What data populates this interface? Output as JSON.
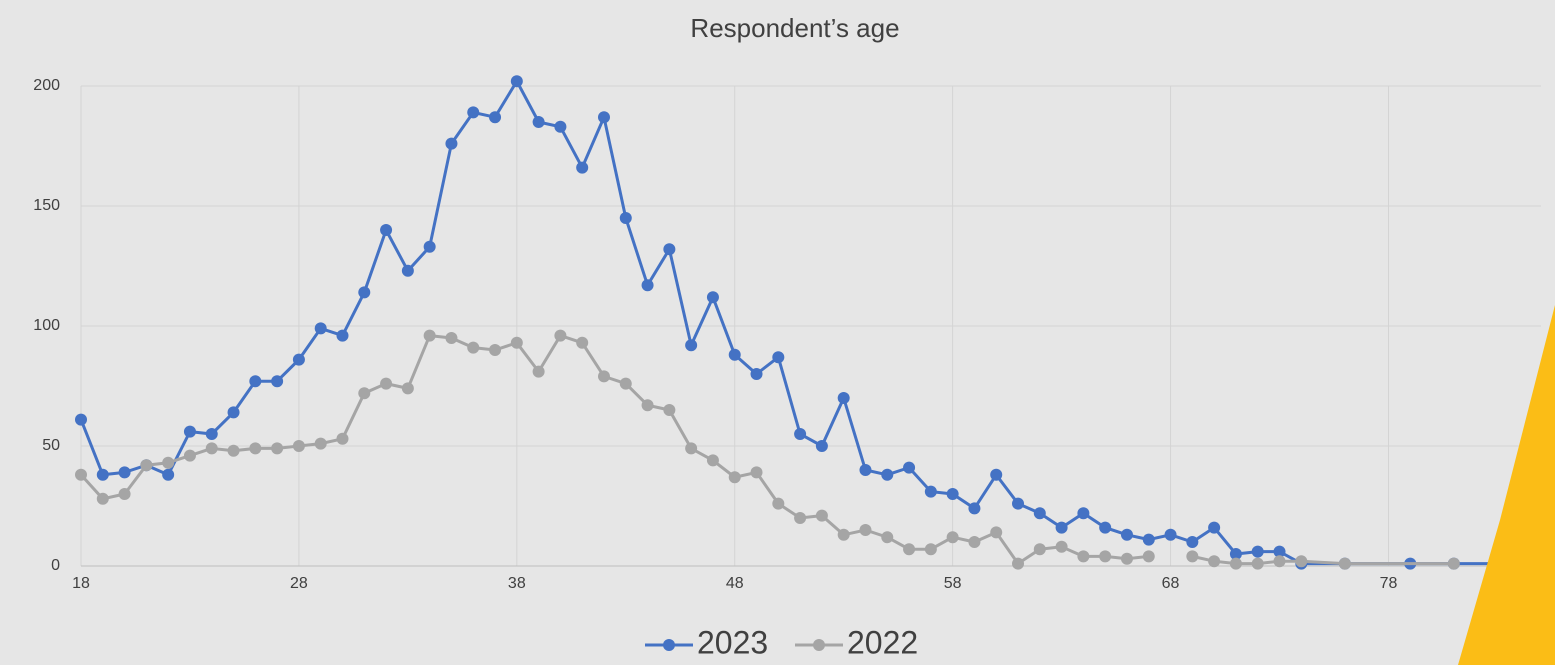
{
  "chart_data": {
    "type": "line",
    "title": "Respondent’s age",
    "xlim": [
      18,
      85
    ],
    "xticks": [
      18,
      28,
      38,
      48,
      58,
      68,
      78
    ],
    "ylim": [
      0,
      200
    ],
    "yticks": [
      0,
      50,
      100,
      150,
      200
    ],
    "grid": true,
    "legend": "bottom",
    "series": [
      {
        "name": "2023",
        "color": "#4472c4",
        "x": [
          18,
          19,
          20,
          21,
          22,
          23,
          24,
          25,
          26,
          27,
          28,
          29,
          30,
          31,
          32,
          33,
          34,
          35,
          36,
          37,
          38,
          39,
          40,
          41,
          42,
          43,
          44,
          45,
          46,
          47,
          48,
          49,
          50,
          51,
          52,
          53,
          54,
          55,
          56,
          57,
          58,
          59,
          60,
          61,
          62,
          63,
          64,
          65,
          66,
          67,
          68,
          69,
          70,
          71,
          72,
          73,
          74,
          76,
          79,
          81,
          84,
          85
        ],
        "values": [
          61,
          38,
          39,
          42,
          38,
          56,
          55,
          64,
          77,
          77,
          86,
          99,
          96,
          114,
          140,
          123,
          133,
          176,
          189,
          187,
          202,
          185,
          183,
          166,
          187,
          145,
          117,
          132,
          92,
          112,
          88,
          80,
          87,
          55,
          50,
          70,
          40,
          38,
          41,
          31,
          30,
          24,
          38,
          26,
          22,
          16,
          22,
          16,
          13,
          11,
          13,
          10,
          16,
          5,
          6,
          6,
          1,
          1,
          1,
          1,
          1,
          2
        ]
      },
      {
        "name": "2022",
        "color": "#a5a5a5",
        "x": [
          18,
          19,
          20,
          21,
          22,
          23,
          24,
          25,
          26,
          27,
          28,
          29,
          30,
          31,
          32,
          33,
          34,
          35,
          36,
          37,
          38,
          39,
          40,
          41,
          42,
          43,
          44,
          45,
          46,
          47,
          48,
          49,
          50,
          51,
          52,
          53,
          54,
          55,
          56,
          57,
          58,
          59,
          60,
          61,
          62,
          63,
          64,
          65,
          66,
          67,
          68,
          69,
          70,
          71,
          72,
          73,
          74,
          76,
          81
        ],
        "values": [
          38,
          28,
          30,
          42,
          43,
          46,
          49,
          48,
          49,
          49,
          50,
          51,
          53,
          72,
          76,
          74,
          96,
          95,
          91,
          90,
          93,
          81,
          96,
          93,
          79,
          76,
          67,
          65,
          49,
          44,
          37,
          39,
          26,
          20,
          21,
          13,
          15,
          12,
          7,
          7,
          12,
          10,
          14,
          1,
          7,
          8,
          4,
          4,
          3,
          4,
          null,
          4,
          2,
          1,
          1,
          2,
          2,
          1,
          1
        ]
      }
    ]
  }
}
